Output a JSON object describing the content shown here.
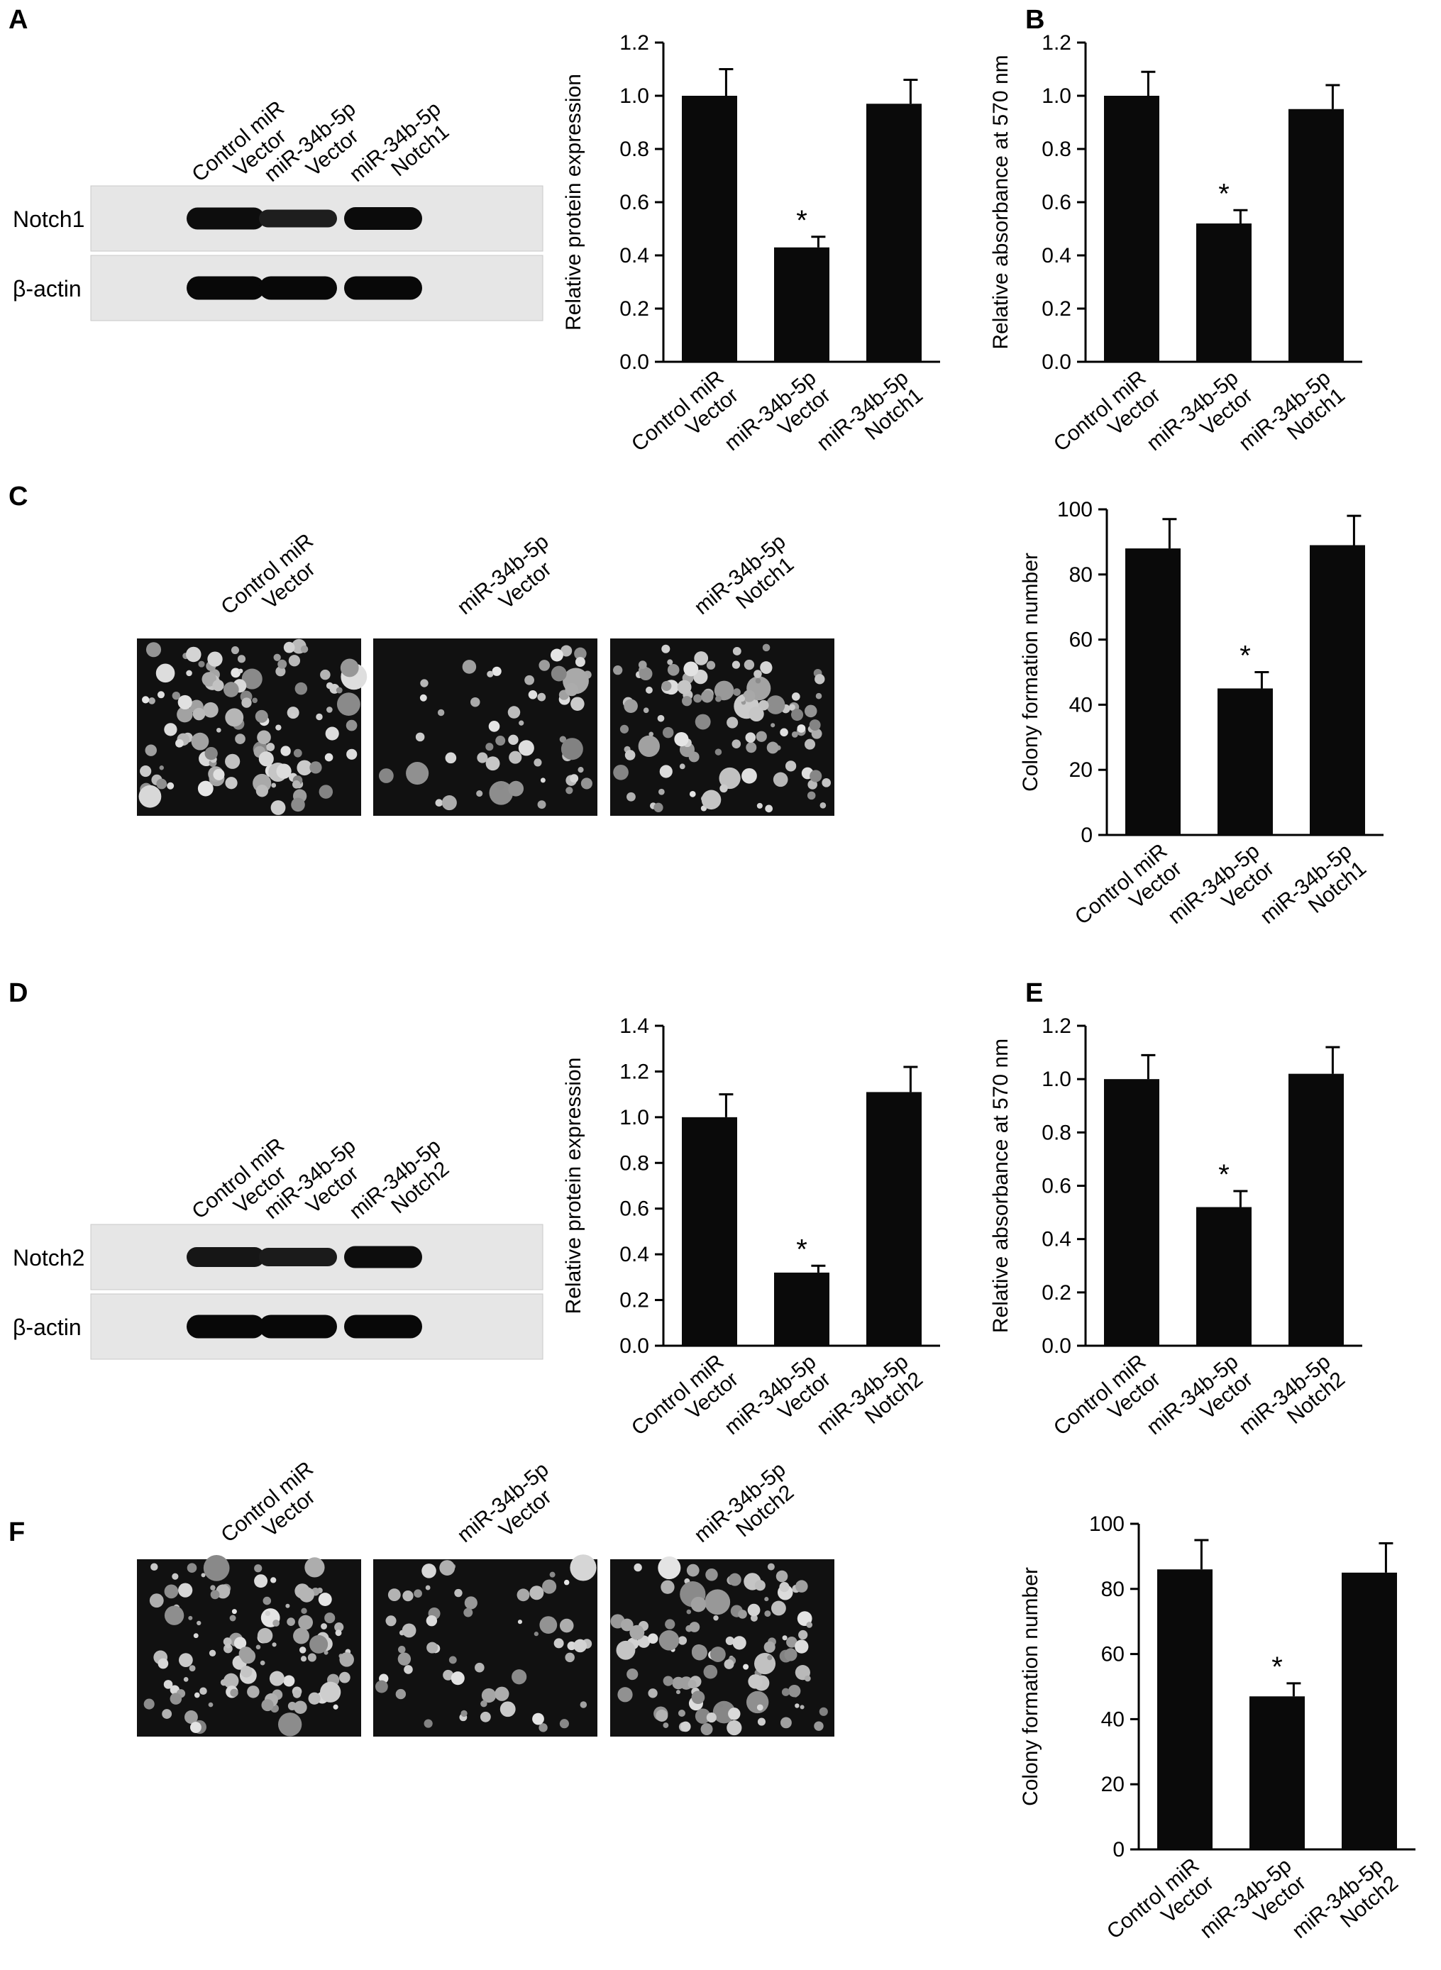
{
  "panels": {
    "A": {
      "letter": "A"
    },
    "B": {
      "letter": "B"
    },
    "C": {
      "letter": "C"
    },
    "D": {
      "letter": "D"
    },
    "E": {
      "letter": "E"
    },
    "F": {
      "letter": "F"
    }
  },
  "western_blots": [
    {
      "id": "A",
      "lane_labels": [
        [
          "Control miR",
          "Vector"
        ],
        [
          "miR-34b-5p",
          "Vector"
        ],
        [
          "miR-34b-5p",
          "Notch1"
        ]
      ],
      "bands": [
        {
          "label": "Notch1",
          "intensities": [
            0.85,
            0.55,
            0.9
          ]
        },
        {
          "label": "β-actin",
          "intensities": [
            0.95,
            0.95,
            0.95
          ]
        }
      ]
    },
    {
      "id": "D",
      "lane_labels": [
        [
          "Control miR",
          "Vector"
        ],
        [
          "miR-34b-5p",
          "Vector"
        ],
        [
          "miR-34b-5p",
          "Notch2"
        ]
      ],
      "bands": [
        {
          "label": "Notch2",
          "intensities": [
            0.7,
            0.6,
            0.85
          ]
        },
        {
          "label": "β-actin",
          "intensities": [
            0.95,
            0.95,
            0.95
          ]
        }
      ]
    }
  ],
  "colony_images": [
    {
      "id": "C",
      "lane_labels": [
        [
          "Control miR",
          "Vector"
        ],
        [
          "miR-34b-5p",
          "Vector"
        ],
        [
          "miR-34b-5p",
          "Notch1"
        ]
      ],
      "density": [
        1.0,
        0.5,
        1.0
      ]
    },
    {
      "id": "F",
      "lane_labels": [
        [
          "Control miR",
          "Vector"
        ],
        [
          "miR-34b-5p",
          "Vector"
        ],
        [
          "miR-34b-5p",
          "Notch2"
        ]
      ],
      "density": [
        1.0,
        0.5,
        1.0
      ]
    }
  ],
  "chart_data": [
    {
      "panel": "A",
      "type": "bar",
      "categories": [
        [
          "Control miR",
          "Vector"
        ],
        [
          "miR-34b-5p",
          "Vector"
        ],
        [
          "miR-34b-5p",
          "Notch1"
        ]
      ],
      "values": [
        1.0,
        0.43,
        0.97
      ],
      "errors": [
        0.1,
        0.04,
        0.09
      ],
      "significance": [
        "",
        "*",
        ""
      ],
      "ylabel": "Relative protein expression",
      "ylim": [
        0,
        1.2
      ],
      "yticks": [
        "0.0",
        "0.2",
        "0.4",
        "0.6",
        "0.8",
        "1.0",
        "1.2"
      ]
    },
    {
      "panel": "B",
      "type": "bar",
      "categories": [
        [
          "Control miR",
          "Vector"
        ],
        [
          "miR-34b-5p",
          "Vector"
        ],
        [
          "miR-34b-5p",
          "Notch1"
        ]
      ],
      "values": [
        1.0,
        0.52,
        0.95
      ],
      "errors": [
        0.09,
        0.05,
        0.09
      ],
      "significance": [
        "",
        "*",
        ""
      ],
      "ylabel": "Relative absorbance at 570 nm",
      "ylim": [
        0,
        1.2
      ],
      "yticks": [
        "0.0",
        "0.2",
        "0.4",
        "0.6",
        "0.8",
        "1.0",
        "1.2"
      ]
    },
    {
      "panel": "C",
      "type": "bar",
      "categories": [
        [
          "Control miR",
          "Vector"
        ],
        [
          "miR-34b-5p",
          "Vector"
        ],
        [
          "miR-34b-5p",
          "Notch1"
        ]
      ],
      "values": [
        88,
        45,
        89
      ],
      "errors": [
        9,
        5,
        9
      ],
      "significance": [
        "",
        "*",
        ""
      ],
      "ylabel": "Colony formation number",
      "ylim": [
        0,
        100
      ],
      "yticks": [
        "0",
        "20",
        "40",
        "60",
        "80",
        "100"
      ]
    },
    {
      "panel": "D",
      "type": "bar",
      "categories": [
        [
          "Control miR",
          "Vector"
        ],
        [
          "miR-34b-5p",
          "Vector"
        ],
        [
          "miR-34b-5p",
          "Notch2"
        ]
      ],
      "values": [
        1.0,
        0.32,
        1.11
      ],
      "errors": [
        0.1,
        0.03,
        0.11
      ],
      "significance": [
        "",
        "*",
        ""
      ],
      "ylabel": "Relative protein expression",
      "ylim": [
        0,
        1.4
      ],
      "yticks": [
        "0.0",
        "0.2",
        "0.4",
        "0.6",
        "0.8",
        "1.0",
        "1.2",
        "1.4"
      ]
    },
    {
      "panel": "E",
      "type": "bar",
      "categories": [
        [
          "Control miR",
          "Vector"
        ],
        [
          "miR-34b-5p",
          "Vector"
        ],
        [
          "miR-34b-5p",
          "Notch2"
        ]
      ],
      "values": [
        1.0,
        0.52,
        1.02
      ],
      "errors": [
        0.09,
        0.06,
        0.1
      ],
      "significance": [
        "",
        "*",
        ""
      ],
      "ylabel": "Relative absorbance at 570 nm",
      "ylim": [
        0,
        1.2
      ],
      "yticks": [
        "0.0",
        "0.2",
        "0.4",
        "0.6",
        "0.8",
        "1.0",
        "1.2"
      ]
    },
    {
      "panel": "F",
      "type": "bar",
      "categories": [
        [
          "Control miR",
          "Vector"
        ],
        [
          "miR-34b-5p",
          "Vector"
        ],
        [
          "miR-34b-5p",
          "Notch2"
        ]
      ],
      "values": [
        86,
        47,
        85
      ],
      "errors": [
        9,
        4,
        9
      ],
      "significance": [
        "",
        "*",
        ""
      ],
      "ylabel": "Colony formation number",
      "ylim": [
        0,
        100
      ],
      "yticks": [
        "0",
        "20",
        "40",
        "60",
        "80",
        "100"
      ]
    }
  ]
}
